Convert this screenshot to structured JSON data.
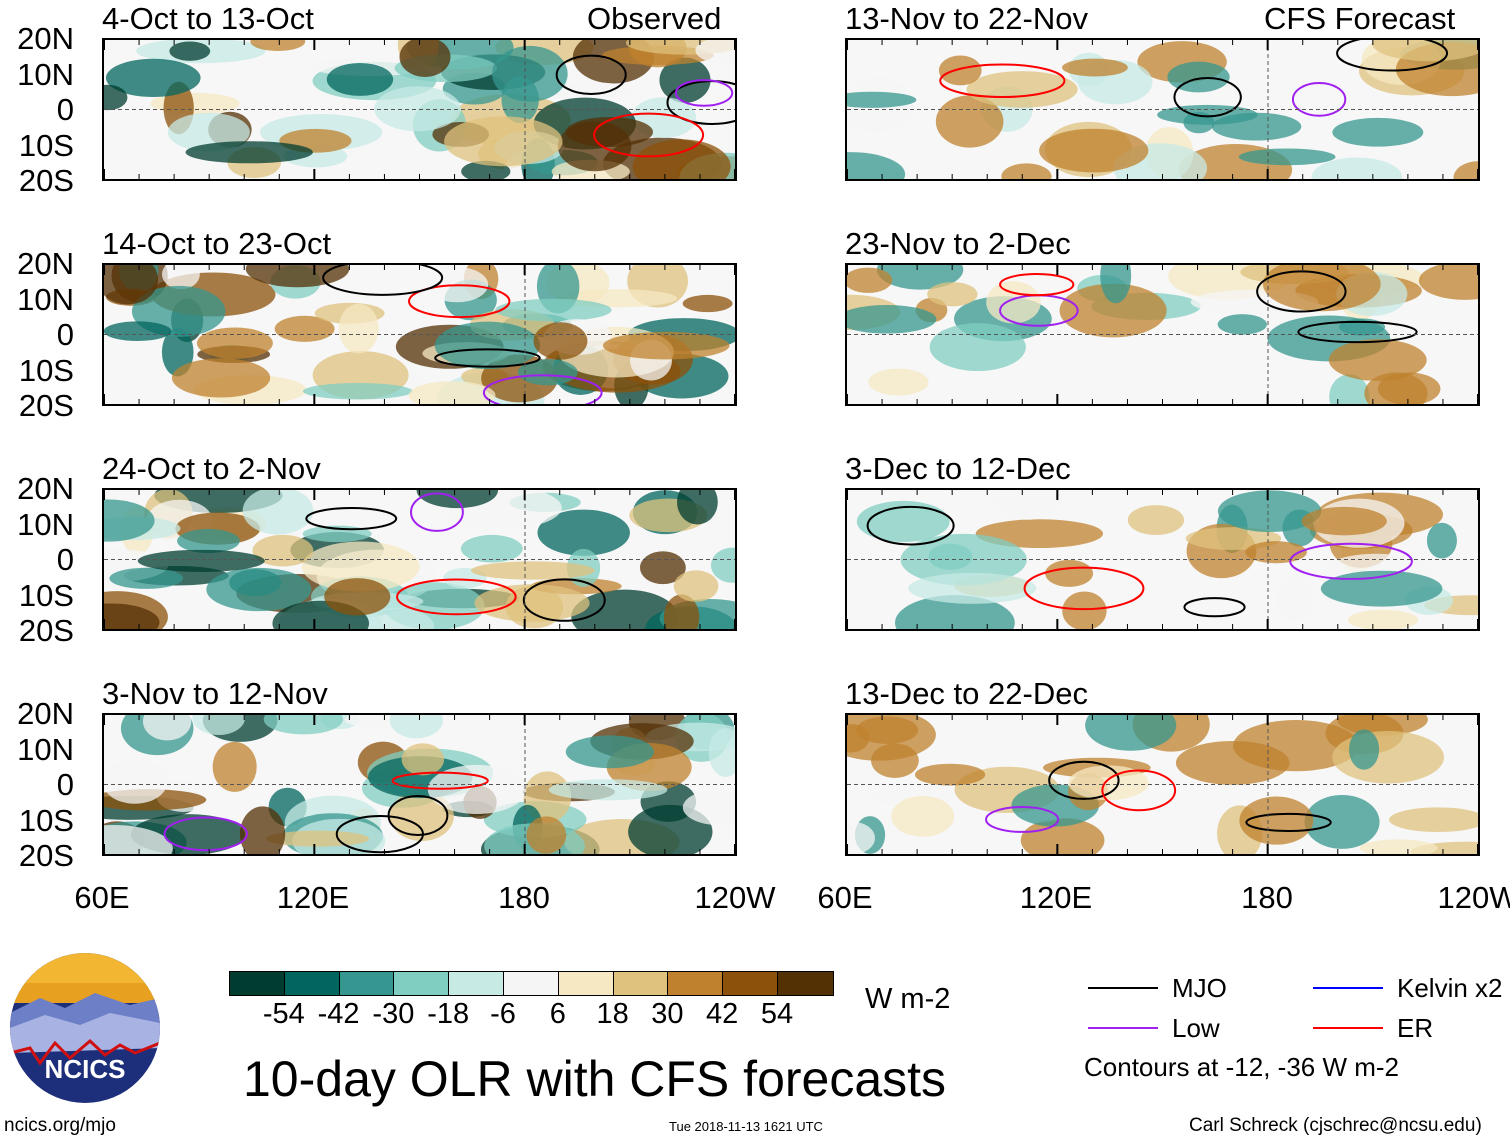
{
  "title": "10-day OLR with CFS forecasts",
  "column_labels": {
    "observed": "Observed",
    "forecast": "CFS Forecast"
  },
  "panels": [
    {
      "period": "4-Oct to 13-Oct",
      "type": "observed"
    },
    {
      "period": "14-Oct to 23-Oct",
      "type": "observed"
    },
    {
      "period": "24-Oct to 2-Nov",
      "type": "observed"
    },
    {
      "period": "3-Nov to 12-Nov",
      "type": "observed"
    },
    {
      "period": "13-Nov to 22-Nov",
      "type": "forecast"
    },
    {
      "period": "23-Nov to 2-Dec",
      "type": "forecast"
    },
    {
      "period": "3-Dec to 12-Dec",
      "type": "forecast"
    },
    {
      "period": "13-Dec to 22-Dec",
      "type": "forecast"
    }
  ],
  "lat_labels": [
    "20N",
    "10N",
    "0",
    "10S",
    "20S"
  ],
  "lon_labels": [
    "60E",
    "120E",
    "180",
    "120W"
  ],
  "colorbar": {
    "unit": "W m-2",
    "labels": [
      "-54",
      "-42",
      "-30",
      "-18",
      "-6",
      "6",
      "18",
      "30",
      "42",
      "54"
    ],
    "colors": [
      "#003c30",
      "#01665e",
      "#35978f",
      "#80cdc1",
      "#c7eae5",
      "#f5f5f5",
      "#f6e8c3",
      "#dfc27d",
      "#bf812d",
      "#8c510a",
      "#543005"
    ]
  },
  "legend": {
    "items": [
      {
        "label": "MJO",
        "color": "#000000"
      },
      {
        "label": "Low",
        "color": "#a020f0"
      },
      {
        "label": "Kelvin x2",
        "color": "#0000ff"
      },
      {
        "label": "ER",
        "color": "#ff0000"
      }
    ],
    "note": "Contours at -12, -36 W m-2"
  },
  "logo": {
    "text": "NCICS"
  },
  "footer": {
    "url": "ncics.org/mjo",
    "timestamp": "Tue 2018-11-13 1621 UTC",
    "credit": "Carl Schreck (cjschrec@ncsu.edu)"
  }
}
